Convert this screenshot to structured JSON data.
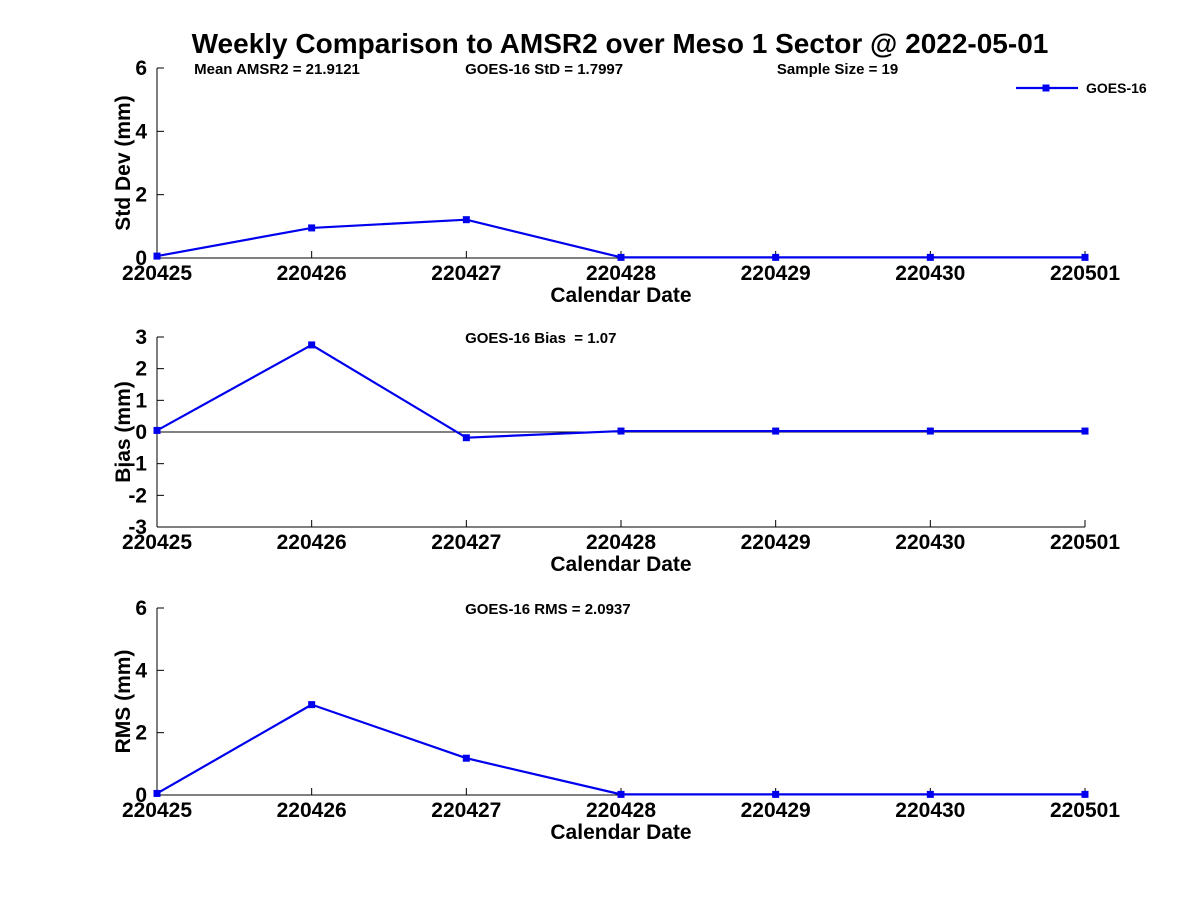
{
  "figure": {
    "title": "Weekly Comparison to AMSR2 over Meso 1 Sector @ 2022-05-01",
    "background_color": "#ffffff",
    "axis_color": "#000000",
    "series_color": "#0000ee"
  },
  "legend": {
    "label": "GOES-16",
    "marker": "filled-square",
    "color": "#0000ee",
    "position": "top-right"
  },
  "chart_data": [
    {
      "type": "line",
      "name": "std-dev",
      "ylabel": "Std Dev (mm)",
      "xlabel": "Calendar Date",
      "ylim": [
        0,
        6
      ],
      "yticks": [
        0,
        2,
        4,
        6
      ],
      "categories": [
        "220425",
        "220426",
        "220427",
        "220428",
        "220429",
        "220430",
        "220501"
      ],
      "series": [
        {
          "name": "GOES-16",
          "color": "#0000ee",
          "marker": "square",
          "values": [
            0.06,
            0.95,
            1.21,
            0.02,
            0.02,
            0.02,
            0.02
          ]
        }
      ],
      "annotations": [
        {
          "text": "Mean AMSR2 = 21.9121",
          "xfrac": 0.04
        },
        {
          "text": "GOES-16 StD = 1.7997",
          "xfrac": 0.332
        },
        {
          "text": "Sample Size = 19",
          "xfrac": 0.668
        }
      ],
      "grid": false,
      "legend": true,
      "zero_line": false
    },
    {
      "type": "line",
      "name": "bias",
      "ylabel": "Bias (mm)",
      "xlabel": "Calendar Date",
      "ylim": [
        -3,
        3
      ],
      "yticks": [
        -3,
        -2,
        -1,
        0,
        1,
        2,
        3
      ],
      "categories": [
        "220425",
        "220426",
        "220427",
        "220428",
        "220429",
        "220430",
        "220501"
      ],
      "series": [
        {
          "name": "GOES-16",
          "color": "#0000ee",
          "marker": "square",
          "values": [
            0.05,
            2.75,
            -0.18,
            0.03,
            0.03,
            0.03,
            0.03
          ]
        }
      ],
      "annotations": [
        {
          "text": "GOES-16 Bias  = 1.07",
          "xfrac": 0.332
        }
      ],
      "grid": false,
      "legend": false,
      "zero_line": true
    },
    {
      "type": "line",
      "name": "rms",
      "ylabel": "RMS (mm)",
      "xlabel": "Calendar Date",
      "ylim": [
        0,
        6
      ],
      "yticks": [
        0,
        2,
        4,
        6
      ],
      "categories": [
        "220425",
        "220426",
        "220427",
        "220428",
        "220429",
        "220430",
        "220501"
      ],
      "series": [
        {
          "name": "GOES-16",
          "color": "#0000ee",
          "marker": "square",
          "values": [
            0.05,
            2.9,
            1.18,
            0.02,
            0.02,
            0.02,
            0.02
          ]
        }
      ],
      "annotations": [
        {
          "text": "GOES-16 RMS = 2.0937",
          "xfrac": 0.332
        }
      ],
      "grid": false,
      "legend": false,
      "zero_line": false
    }
  ]
}
